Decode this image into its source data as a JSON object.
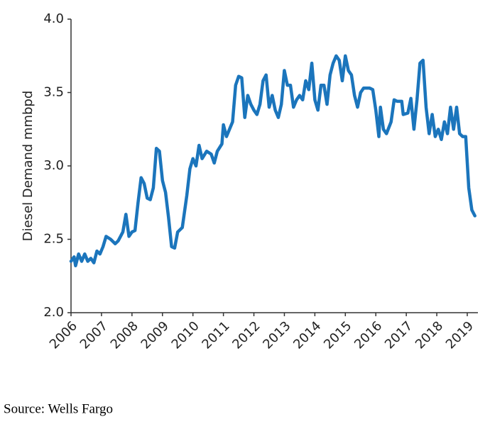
{
  "chart_data": {
    "type": "line",
    "ylabel": "Diesel Demand mmbpd",
    "source": "Source: Wells Fargo",
    "color": "#1b75bc",
    "x": [
      2006.0,
      2006.1,
      2006.15,
      2006.25,
      2006.35,
      2006.45,
      2006.55,
      2006.65,
      2006.75,
      2006.85,
      2006.95,
      2007.05,
      2007.15,
      2007.3,
      2007.45,
      2007.55,
      2007.7,
      2007.8,
      2007.9,
      2008.0,
      2008.1,
      2008.2,
      2008.3,
      2008.4,
      2008.5,
      2008.6,
      2008.7,
      2008.8,
      2008.9,
      2009.0,
      2009.1,
      2009.2,
      2009.3,
      2009.4,
      2009.5,
      2009.65,
      2009.8,
      2009.9,
      2010.0,
      2010.1,
      2010.2,
      2010.3,
      2010.45,
      2010.6,
      2010.7,
      2010.8,
      2010.95,
      2011.0,
      2011.1,
      2011.2,
      2011.3,
      2011.4,
      2011.5,
      2011.6,
      2011.7,
      2011.8,
      2011.9,
      2012.0,
      2012.1,
      2012.2,
      2012.3,
      2012.4,
      2012.5,
      2012.6,
      2012.7,
      2012.8,
      2012.9,
      2013.0,
      2013.1,
      2013.2,
      2013.3,
      2013.4,
      2013.5,
      2013.6,
      2013.7,
      2013.8,
      2013.9,
      2014.0,
      2014.1,
      2014.2,
      2014.3,
      2014.4,
      2014.5,
      2014.6,
      2014.7,
      2014.8,
      2014.9,
      2015.0,
      2015.1,
      2015.2,
      2015.3,
      2015.4,
      2015.5,
      2015.6,
      2015.8,
      2015.9,
      2016.0,
      2016.1,
      2016.15,
      2016.25,
      2016.35,
      2016.5,
      2016.6,
      2016.7,
      2016.85,
      2016.9,
      2017.05,
      2017.15,
      2017.25,
      2017.35,
      2017.45,
      2017.55,
      2017.65,
      2017.75,
      2017.85,
      2017.95,
      2018.05,
      2018.15,
      2018.25,
      2018.35,
      2018.45,
      2018.55,
      2018.65,
      2018.75,
      2018.85,
      2018.95,
      2019.05,
      2019.15,
      2019.25
    ],
    "series": [
      {
        "name": "Diesel Demand",
        "color": "#1b75bc",
        "values": [
          2.35,
          2.38,
          2.32,
          2.4,
          2.35,
          2.4,
          2.35,
          2.37,
          2.34,
          2.42,
          2.4,
          2.45,
          2.52,
          2.5,
          2.47,
          2.49,
          2.55,
          2.67,
          2.52,
          2.55,
          2.56,
          2.75,
          2.92,
          2.88,
          2.78,
          2.77,
          2.85,
          3.12,
          3.1,
          2.9,
          2.82,
          2.65,
          2.45,
          2.44,
          2.55,
          2.58,
          2.8,
          2.98,
          3.05,
          3.0,
          3.14,
          3.05,
          3.1,
          3.08,
          3.02,
          3.1,
          3.15,
          3.28,
          3.2,
          3.25,
          3.3,
          3.55,
          3.61,
          3.6,
          3.33,
          3.48,
          3.42,
          3.38,
          3.35,
          3.42,
          3.58,
          3.62,
          3.4,
          3.48,
          3.38,
          3.33,
          3.42,
          3.65,
          3.55,
          3.55,
          3.4,
          3.45,
          3.48,
          3.45,
          3.58,
          3.52,
          3.7,
          3.45,
          3.38,
          3.55,
          3.55,
          3.42,
          3.62,
          3.7,
          3.75,
          3.72,
          3.58,
          3.75,
          3.65,
          3.62,
          3.48,
          3.4,
          3.5,
          3.53,
          3.53,
          3.52,
          3.38,
          3.2,
          3.4,
          3.25,
          3.22,
          3.3,
          3.45,
          3.44,
          3.44,
          3.35,
          3.36,
          3.46,
          3.25,
          3.45,
          3.7,
          3.72,
          3.4,
          3.22,
          3.35,
          3.2,
          3.25,
          3.18,
          3.3,
          3.22,
          3.4,
          3.25,
          3.4,
          3.22,
          3.2,
          3.2,
          2.85,
          2.7,
          2.66
        ]
      }
    ],
    "xlim": [
      2006,
      2019.35
    ],
    "xticks": [
      2006,
      2007,
      2008,
      2009,
      2010,
      2011,
      2012,
      2013,
      2014,
      2015,
      2016,
      2017,
      2018,
      2019
    ],
    "ylim": [
      2.0,
      4.0
    ],
    "yticks": [
      {
        "value": 2,
        "label": "2.0"
      },
      2.5,
      {
        "value": 3,
        "label": "3.0"
      },
      3.5,
      {
        "value": 4,
        "label": "4.0"
      }
    ],
    "grid": false
  }
}
